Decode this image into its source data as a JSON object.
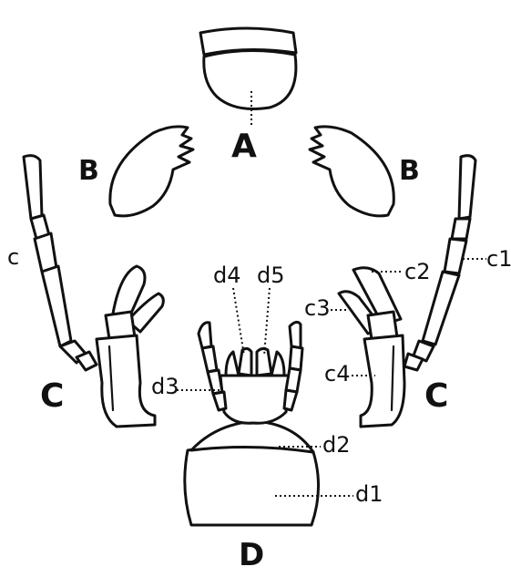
{
  "labels": {
    "A": "A",
    "B_left": "B",
    "B_right": "B",
    "C_left": "C",
    "C_right": "C",
    "D": "D",
    "c": "c",
    "c1": "c1",
    "c2": "c2",
    "c3": "c3",
    "c4": "c4",
    "d1": "d1",
    "d2": "d2",
    "d3": "d3",
    "d4": "d4",
    "d5": "d5"
  }
}
